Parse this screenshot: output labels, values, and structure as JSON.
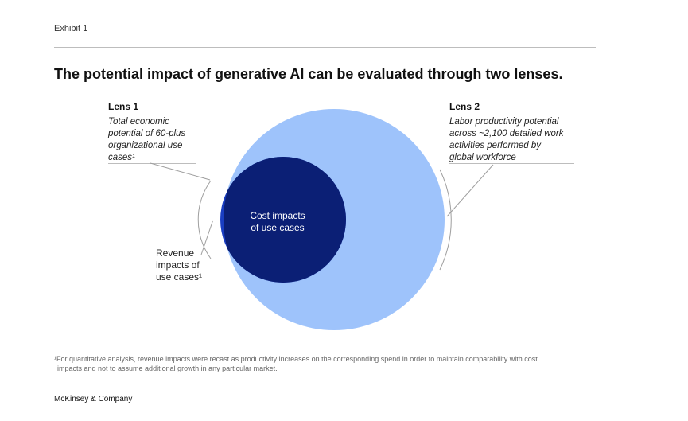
{
  "exhibit_label": "Exhibit 1",
  "title": "The potential impact of generative AI can be evaluated through two lenses.",
  "lens1": {
    "heading": "Lens 1",
    "lines": [
      "Total economic",
      "potential of 60-plus",
      "organizational use",
      "cases¹"
    ]
  },
  "lens2": {
    "heading": "Lens 2",
    "lines": [
      "Labor productivity potential",
      "across ~2,100 detailed work",
      "activities performed by",
      "global workforce"
    ]
  },
  "diagram": {
    "cost_label_lines": [
      "Cost impacts",
      "of use cases"
    ],
    "revenue_label_lines": [
      "Revenue",
      "impacts of",
      "use cases¹"
    ],
    "colors": {
      "large_circle": "#9ec3fb",
      "revenue_crescent": "#1a3ec2",
      "cost_circle": "#0b1f75",
      "leader_line": "#9e9e9e"
    }
  },
  "footnote": {
    "line1": "¹For quantitative analysis, revenue impacts were recast as productivity increases on the corresponding spend in order to maintain comparability with cost",
    "line2": "impacts and not to assume additional growth in any particular market."
  },
  "brand": "McKinsey & Company"
}
